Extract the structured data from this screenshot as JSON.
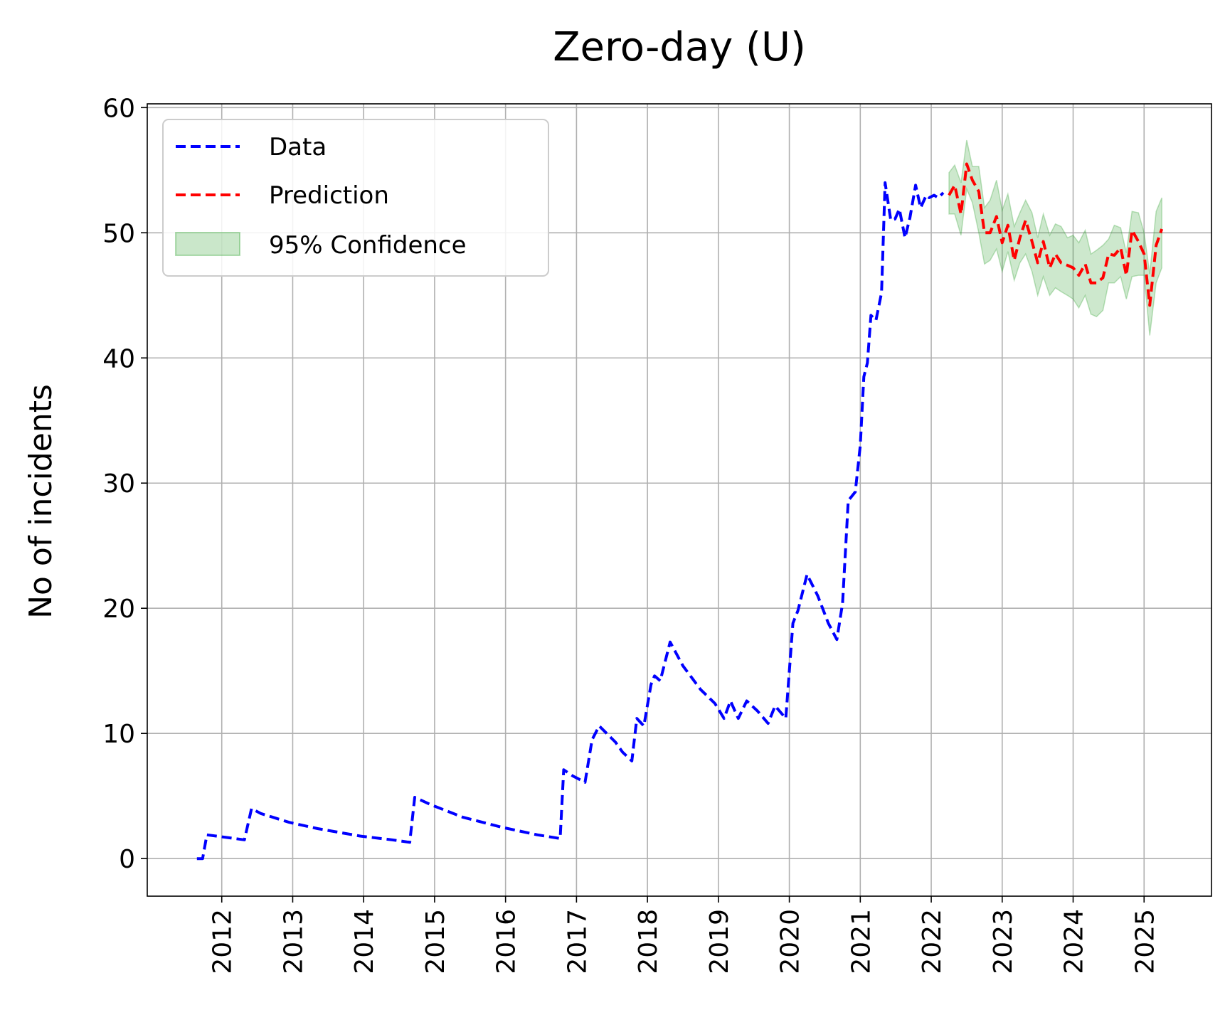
{
  "chart_data": {
    "type": "line",
    "title": "Zero-day (U)",
    "xlabel": "",
    "ylabel": "No of incidents",
    "xlim": [
      2010.95,
      2025.95
    ],
    "ylim": [
      -3,
      60.3
    ],
    "xticks": [
      2012,
      2013,
      2014,
      2015,
      2016,
      2017,
      2018,
      2019,
      2020,
      2021,
      2022,
      2023,
      2024,
      2025
    ],
    "yticks": [
      0,
      10,
      20,
      30,
      40,
      50,
      60
    ],
    "grid": true,
    "legend_position": "top-left",
    "legend": [
      "Data",
      "Prediction",
      "95% Confidence"
    ],
    "colors": {
      "data": "#0000ff",
      "prediction": "#ff0000",
      "confidence": "#2ca02c"
    },
    "series": [
      {
        "name": "Data",
        "style": "dashed",
        "x": [
          2011.65,
          2011.73,
          2011.79,
          2012.32,
          2012.42,
          2012.55,
          2012.95,
          2013.35,
          2013.95,
          2014.4,
          2014.65,
          2014.72,
          2014.95,
          2015.4,
          2015.95,
          2016.45,
          2016.77,
          2016.82,
          2016.95,
          2017.12,
          2017.22,
          2017.32,
          2017.55,
          2017.65,
          2017.78,
          2017.85,
          2017.95,
          2018.05,
          2018.1,
          2018.18,
          2018.32,
          2018.5,
          2018.75,
          2018.95,
          2019.08,
          2019.17,
          2019.28,
          2019.4,
          2019.55,
          2019.7,
          2019.8,
          2019.95,
          2020.05,
          2020.12,
          2020.25,
          2020.4,
          2020.55,
          2020.67,
          2020.75,
          2020.83,
          2020.93,
          2021.0,
          2021.05,
          2021.1,
          2021.15,
          2021.22,
          2021.3,
          2021.35,
          2021.43,
          2021.49,
          2021.55,
          2021.63,
          2021.7,
          2021.78,
          2021.85,
          2021.93,
          2021.97,
          2022.04,
          2022.1,
          2022.17
        ],
        "y": [
          0,
          0,
          1.9,
          1.5,
          4.0,
          3.6,
          2.9,
          2.4,
          1.8,
          1.5,
          1.3,
          4.9,
          4.3,
          3.3,
          2.5,
          1.9,
          1.6,
          7.1,
          6.6,
          6.1,
          9.5,
          10.6,
          9.3,
          8.5,
          7.8,
          11.2,
          10.6,
          13.9,
          14.6,
          14.2,
          17.3,
          15.4,
          13.5,
          12.4,
          11.2,
          12.6,
          11.2,
          12.6,
          11.8,
          10.8,
          12.2,
          11.2,
          18.8,
          19.8,
          22.7,
          21.0,
          18.8,
          17.5,
          20.4,
          28.6,
          29.3,
          33.0,
          38.5,
          39.6,
          43.4,
          43.0,
          45.2,
          54.0,
          51.0,
          51.1,
          51.9,
          49.6,
          51.2,
          53.8,
          52.0,
          53.0,
          52.8,
          53.0,
          52.8,
          53.2
        ],
        "color": "#0000ff"
      },
      {
        "name": "Prediction",
        "style": "dashed",
        "x": [
          2022.25,
          2022.33,
          2022.42,
          2022.5,
          2022.58,
          2022.67,
          2022.75,
          2022.83,
          2022.92,
          2023.0,
          2023.08,
          2023.17,
          2023.25,
          2023.33,
          2023.42,
          2023.5,
          2023.58,
          2023.67,
          2023.75,
          2023.83,
          2023.92,
          2024.0,
          2024.08,
          2024.17,
          2024.25,
          2024.33,
          2024.42,
          2024.5,
          2024.58,
          2024.67,
          2024.75,
          2024.83,
          2024.92,
          2025.0,
          2025.08,
          2025.17,
          2025.25
        ],
        "y": [
          53.0,
          53.8,
          51.5,
          55.5,
          54.2,
          53.3,
          50.0,
          50.0,
          51.3,
          49.2,
          50.6,
          47.8,
          49.6,
          51.0,
          49.3,
          47.6,
          49.3,
          47.2,
          48.3,
          47.6,
          47.4,
          47.2,
          46.6,
          47.5,
          46.0,
          46.0,
          46.4,
          48.3,
          48.2,
          48.8,
          46.6,
          50.2,
          49.3,
          48.3,
          44.2,
          49.0,
          50.3
        ],
        "color": "#ff0000"
      },
      {
        "name": "95% Confidence",
        "type": "band",
        "x": [
          2022.25,
          2022.33,
          2022.42,
          2022.5,
          2022.58,
          2022.67,
          2022.75,
          2022.83,
          2022.92,
          2023.0,
          2023.08,
          2023.17,
          2023.25,
          2023.33,
          2023.42,
          2023.5,
          2023.58,
          2023.67,
          2023.75,
          2023.83,
          2023.92,
          2024.0,
          2024.08,
          2024.17,
          2024.25,
          2024.33,
          2024.42,
          2024.5,
          2024.58,
          2024.67,
          2024.75,
          2024.83,
          2024.92,
          2025.0,
          2025.08,
          2025.17,
          2025.25
        ],
        "lower": [
          51.5,
          51.5,
          49.8,
          53.5,
          52.4,
          50.0,
          47.5,
          47.8,
          48.7,
          46.9,
          48.5,
          46.2,
          47.6,
          48.3,
          46.9,
          45.0,
          46.5,
          45.0,
          45.6,
          45.3,
          45.0,
          44.7,
          44.0,
          45.0,
          43.5,
          43.3,
          43.8,
          46.0,
          46.0,
          46.5,
          44.7,
          46.5,
          46.6,
          46.6,
          41.8,
          46.0,
          47.2
        ],
        "upper": [
          54.8,
          55.4,
          54.0,
          57.4,
          55.3,
          55.3,
          52.0,
          52.6,
          54.2,
          51.8,
          53.1,
          50.5,
          51.6,
          52.6,
          51.6,
          49.6,
          51.5,
          49.8,
          50.7,
          50.5,
          49.6,
          49.8,
          49.2,
          50.2,
          48.3,
          48.6,
          49.0,
          49.5,
          50.6,
          50.4,
          48.4,
          51.7,
          51.6,
          50.0,
          46.7,
          51.7,
          52.8
        ],
        "color": "#2ca02c"
      }
    ]
  }
}
